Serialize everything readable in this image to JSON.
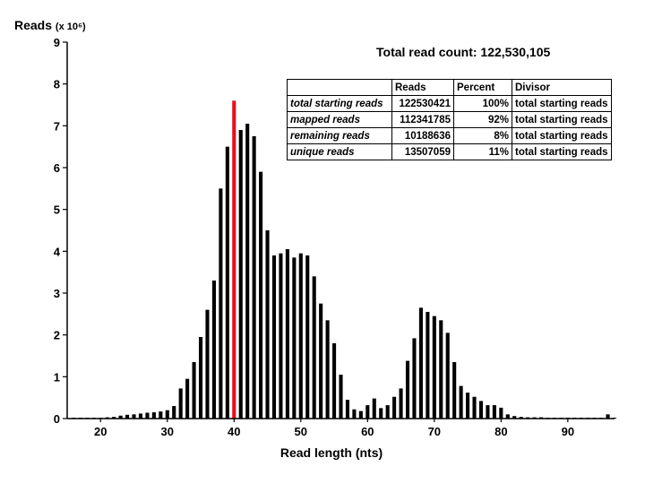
{
  "chart_data": {
    "type": "bar",
    "title": "Total read count: 122,530,105",
    "ylabel_main": "Reads",
    "ylabel_unit": "(x 10⁶)",
    "xlabel": "Read length (nts)",
    "xlim": [
      15,
      97
    ],
    "ylim": [
      0,
      9
    ],
    "x_ticks": [
      "20",
      "30",
      "40",
      "50",
      "60",
      "70",
      "80",
      "90"
    ],
    "y_ticks": [
      "0",
      "1",
      "2",
      "3",
      "4",
      "5",
      "6",
      "7",
      "8",
      "9"
    ],
    "highlight_color": "#e3101d",
    "bar_color": "#000000",
    "series": [
      {
        "x": [
          16,
          17,
          18,
          19,
          20,
          21,
          22,
          23,
          24,
          25,
          26,
          27,
          28,
          29,
          30,
          31,
          32,
          33,
          34,
          35,
          36,
          37,
          38,
          39,
          40,
          41,
          42,
          43,
          44,
          45,
          46,
          47,
          48,
          49,
          50,
          51,
          52,
          53,
          54,
          55,
          56,
          57,
          58,
          59,
          60,
          61,
          62,
          63,
          64,
          65,
          66,
          67,
          68,
          69,
          70,
          71,
          72,
          73,
          74,
          75,
          76,
          77,
          78,
          79,
          80,
          81,
          82,
          83,
          84,
          85,
          86,
          87,
          88,
          89,
          90,
          91,
          92,
          93,
          94,
          95,
          96,
          97
        ],
        "values": [
          0.02,
          0.02,
          0.02,
          0.02,
          0.02,
          0.03,
          0.04,
          0.07,
          0.09,
          0.1,
          0.12,
          0.14,
          0.15,
          0.17,
          0.2,
          0.3,
          0.72,
          0.95,
          1.35,
          1.95,
          2.6,
          3.3,
          5.5,
          6.5,
          7.6,
          6.9,
          7.05,
          6.75,
          5.9,
          4.5,
          3.9,
          3.95,
          4.05,
          3.85,
          3.95,
          3.9,
          3.4,
          2.75,
          2.35,
          1.8,
          1.05,
          0.45,
          0.22,
          0.18,
          0.32,
          0.48,
          0.25,
          0.32,
          0.52,
          0.72,
          1.38,
          1.92,
          2.65,
          2.55,
          2.45,
          2.35,
          2.05,
          1.35,
          0.78,
          0.62,
          0.52,
          0.42,
          0.32,
          0.32,
          0.26,
          0.1,
          0.06,
          0.04,
          0.03,
          0.03,
          0.03,
          0.02,
          0.02,
          0.02,
          0.02,
          0.02,
          0.02,
          0.02,
          0.02,
          0.02,
          0.1,
          0.02
        ],
        "highlight_x": 40
      }
    ]
  },
  "table": {
    "headers": [
      "",
      "Reads",
      "Percent",
      "Divisor"
    ],
    "rows": [
      {
        "label": "total starting reads",
        "reads": "122530421",
        "percent": "100%",
        "divisor": "total starting reads"
      },
      {
        "label": "mapped reads",
        "reads": "112341785",
        "percent": "92%",
        "divisor": "total starting reads"
      },
      {
        "label": "remaining reads",
        "reads": "10188636",
        "percent": "8%",
        "divisor": "total starting reads"
      },
      {
        "label": "unique reads",
        "reads": "13507059",
        "percent": "11%",
        "divisor": "total starting reads"
      }
    ]
  }
}
